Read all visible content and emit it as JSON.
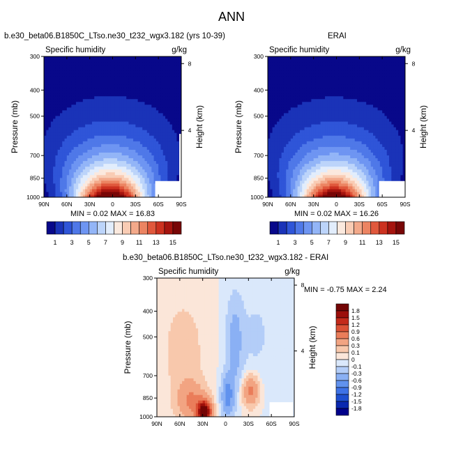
{
  "page": {
    "main_title": "ANN",
    "panel1_title": "b.e30_beta06.B1850C_LTso.ne30_t232_wgx3.182 (yrs 10-39)",
    "panel2_title": "ERAI",
    "panel3_title": "b.e30_beta06.B1850C_LTso.ne30_t232_wgx3.182 - ERAI"
  },
  "colors": {
    "abs_scale": [
      "#08088a",
      "#1a33b8",
      "#2f55d8",
      "#4f78e8",
      "#6e95f2",
      "#93b5f7",
      "#bcd4fa",
      "#e2edfc",
      "#fbe9de",
      "#f9ccb4",
      "#f3a98a",
      "#ec8462",
      "#e0583c",
      "#cc3220",
      "#a5140e",
      "#780606"
    ],
    "diff_scale": [
      "#00008a",
      "#0a28b0",
      "#1e4fd0",
      "#3e72e6",
      "#6192ee",
      "#8ab0f4",
      "#b3cdf8",
      "#dae8fb",
      "#fbe6d9",
      "#f8c8ac",
      "#f2a482",
      "#ea7d5a",
      "#db5236",
      "#c42a1a",
      "#9c0f0a",
      "#730505"
    ]
  },
  "chart_data": [
    {
      "type": "heatmap",
      "title": "b.e30_beta06.B1850C_LTso.ne30_t232_wgx3.182 (yrs 10-39)",
      "left_string": "Specific humidity",
      "units": "g/kg",
      "ylabel": "Pressure (mb)",
      "ylabel_right": "Height (km)",
      "x_ticks": [
        "90N",
        "60N",
        "30N",
        "0",
        "30S",
        "60S",
        "90S"
      ],
      "y_ticks": [
        "300",
        "400",
        "500",
        "700",
        "850",
        "1000"
      ],
      "y_ticks_right": [
        "8",
        "4"
      ],
      "min_max_text": "MIN =  0.02  MAX =  16.83",
      "colorbar_labels": [
        "1",
        "3",
        "5",
        "7",
        "9",
        "11",
        "13",
        "15"
      ],
      "levels": [
        1,
        2,
        3,
        4,
        5,
        6,
        7,
        8,
        9,
        10,
        11,
        12,
        13,
        14,
        15
      ],
      "ylim": [
        1000,
        300
      ],
      "xlim": [
        90,
        -90
      ],
      "min": 0.02,
      "max": 16.83
    },
    {
      "type": "heatmap",
      "title": "ERAI",
      "left_string": "Specific humidity",
      "units": "g/kg",
      "ylabel": "Pressure (mb)",
      "ylabel_right": "Height (km)",
      "x_ticks": [
        "90N",
        "60N",
        "30N",
        "0",
        "30S",
        "60S",
        "90S"
      ],
      "y_ticks": [
        "300",
        "400",
        "500",
        "700",
        "850",
        "1000"
      ],
      "y_ticks_right": [
        "8",
        "4"
      ],
      "min_max_text": "MIN =  0.02  MAX =  16.26",
      "colorbar_labels": [
        "1",
        "3",
        "5",
        "7",
        "9",
        "11",
        "13",
        "15"
      ],
      "levels": [
        1,
        2,
        3,
        4,
        5,
        6,
        7,
        8,
        9,
        10,
        11,
        12,
        13,
        14,
        15
      ],
      "ylim": [
        1000,
        300
      ],
      "xlim": [
        90,
        -90
      ],
      "min": 0.02,
      "max": 16.26
    },
    {
      "type": "heatmap",
      "title": "b.e30_beta06.B1850C_LTso.ne30_t232_wgx3.182 - ERAI",
      "left_string": "Specific humidity",
      "units": "g/kg",
      "ylabel": "Pressure (mb)",
      "ylabel_right": "Height (km)",
      "x_ticks": [
        "90N",
        "60N",
        "30N",
        "0",
        "30S",
        "60S",
        "90S"
      ],
      "y_ticks": [
        "300",
        "400",
        "500",
        "700",
        "850",
        "1000"
      ],
      "y_ticks_right": [
        "8",
        "4"
      ],
      "min_max_text": "MIN = -0.75  MAX =   2.24",
      "colorbar_labels": [
        "1.8",
        "1.5",
        "1.2",
        "0.9",
        "0.6",
        "0.3",
        "0.1",
        "0",
        "-0.1",
        "-0.3",
        "-0.6",
        "-0.9",
        "-1.2",
        "-1.5",
        "-1.8"
      ],
      "levels": [
        -1.8,
        -1.5,
        -1.2,
        -0.9,
        -0.6,
        -0.3,
        -0.1,
        0,
        0.1,
        0.3,
        0.6,
        0.9,
        1.2,
        1.5,
        1.8
      ],
      "ylim": [
        1000,
        300
      ],
      "xlim": [
        90,
        -90
      ],
      "min": -0.75,
      "max": 2.24
    }
  ]
}
